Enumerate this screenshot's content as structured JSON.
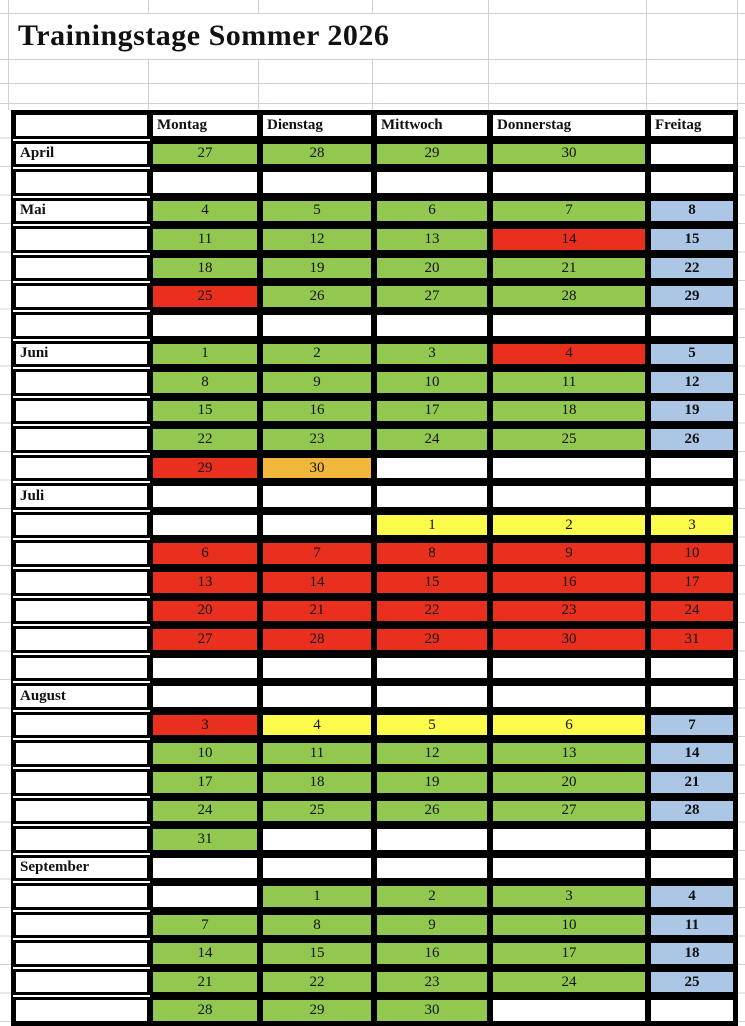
{
  "title": "Trainingstage Sommer 2026",
  "columns": [
    "Montag",
    "Dienstag",
    "Mittwoch",
    "Donnerstag",
    "Freitag"
  ],
  "colors": {
    "g": "#92c850",
    "r": "#e9301f",
    "b": "#acc7e6",
    "y": "#fbfb4b",
    "o": "#f0b73a",
    "w": "#ffffff"
  },
  "rows": [
    {
      "label": "April",
      "cells": [
        {
          "v": "27",
          "c": "g"
        },
        {
          "v": "28",
          "c": "g"
        },
        {
          "v": "29",
          "c": "g"
        },
        {
          "v": "30",
          "c": "g"
        },
        {
          "v": "",
          "c": "w"
        }
      ]
    },
    {
      "label": "",
      "cells": [
        {
          "v": "",
          "c": "w"
        },
        {
          "v": "",
          "c": "w"
        },
        {
          "v": "",
          "c": "w"
        },
        {
          "v": "",
          "c": "w"
        },
        {
          "v": "",
          "c": "w"
        }
      ]
    },
    {
      "label": "Mai",
      "cells": [
        {
          "v": "4",
          "c": "g"
        },
        {
          "v": "5",
          "c": "g"
        },
        {
          "v": "6",
          "c": "g"
        },
        {
          "v": "7",
          "c": "g"
        },
        {
          "v": "8",
          "c": "b"
        }
      ]
    },
    {
      "label": "",
      "cells": [
        {
          "v": "11",
          "c": "g"
        },
        {
          "v": "12",
          "c": "g"
        },
        {
          "v": "13",
          "c": "g"
        },
        {
          "v": "14",
          "c": "r"
        },
        {
          "v": "15",
          "c": "b"
        }
      ]
    },
    {
      "label": "",
      "cells": [
        {
          "v": "18",
          "c": "g"
        },
        {
          "v": "19",
          "c": "g"
        },
        {
          "v": "20",
          "c": "g"
        },
        {
          "v": "21",
          "c": "g"
        },
        {
          "v": "22",
          "c": "b"
        }
      ]
    },
    {
      "label": "",
      "cells": [
        {
          "v": "25",
          "c": "r"
        },
        {
          "v": "26",
          "c": "g"
        },
        {
          "v": "27",
          "c": "g"
        },
        {
          "v": "28",
          "c": "g"
        },
        {
          "v": "29",
          "c": "b"
        }
      ]
    },
    {
      "label": "",
      "cells": [
        {
          "v": "",
          "c": "w"
        },
        {
          "v": "",
          "c": "w"
        },
        {
          "v": "",
          "c": "w"
        },
        {
          "v": "",
          "c": "w"
        },
        {
          "v": "",
          "c": "w"
        }
      ]
    },
    {
      "label": "Juni",
      "cells": [
        {
          "v": "1",
          "c": "g"
        },
        {
          "v": "2",
          "c": "g"
        },
        {
          "v": "3",
          "c": "g"
        },
        {
          "v": "4",
          "c": "r"
        },
        {
          "v": "5",
          "c": "b"
        }
      ]
    },
    {
      "label": "",
      "cells": [
        {
          "v": "8",
          "c": "g"
        },
        {
          "v": "9",
          "c": "g"
        },
        {
          "v": "10",
          "c": "g"
        },
        {
          "v": "11",
          "c": "g"
        },
        {
          "v": "12",
          "c": "b"
        }
      ]
    },
    {
      "label": "",
      "cells": [
        {
          "v": "15",
          "c": "g"
        },
        {
          "v": "16",
          "c": "g"
        },
        {
          "v": "17",
          "c": "g"
        },
        {
          "v": "18",
          "c": "g"
        },
        {
          "v": "19",
          "c": "b"
        }
      ]
    },
    {
      "label": "",
      "cells": [
        {
          "v": "22",
          "c": "g"
        },
        {
          "v": "23",
          "c": "g"
        },
        {
          "v": "24",
          "c": "g"
        },
        {
          "v": "25",
          "c": "g"
        },
        {
          "v": "26",
          "c": "b"
        }
      ]
    },
    {
      "label": "",
      "cells": [
        {
          "v": "29",
          "c": "r"
        },
        {
          "v": "30",
          "c": "o"
        },
        {
          "v": "",
          "c": "w"
        },
        {
          "v": "",
          "c": "w"
        },
        {
          "v": "",
          "c": "w"
        }
      ]
    },
    {
      "label": "Juli",
      "cells": [
        {
          "v": "",
          "c": "w"
        },
        {
          "v": "",
          "c": "w"
        },
        {
          "v": "",
          "c": "w"
        },
        {
          "v": "",
          "c": "w"
        },
        {
          "v": "",
          "c": "w"
        }
      ]
    },
    {
      "label": "",
      "cells": [
        {
          "v": "",
          "c": "w"
        },
        {
          "v": "",
          "c": "w"
        },
        {
          "v": "1",
          "c": "y"
        },
        {
          "v": "2",
          "c": "y"
        },
        {
          "v": "3",
          "c": "y"
        }
      ]
    },
    {
      "label": "",
      "cells": [
        {
          "v": "6",
          "c": "r"
        },
        {
          "v": "7",
          "c": "r"
        },
        {
          "v": "8",
          "c": "r"
        },
        {
          "v": "9",
          "c": "r"
        },
        {
          "v": "10",
          "c": "r"
        }
      ]
    },
    {
      "label": "",
      "cells": [
        {
          "v": "13",
          "c": "r"
        },
        {
          "v": "14",
          "c": "r"
        },
        {
          "v": "15",
          "c": "r"
        },
        {
          "v": "16",
          "c": "r"
        },
        {
          "v": "17",
          "c": "r"
        }
      ]
    },
    {
      "label": "",
      "cells": [
        {
          "v": "20",
          "c": "r"
        },
        {
          "v": "21",
          "c": "r"
        },
        {
          "v": "22",
          "c": "r"
        },
        {
          "v": "23",
          "c": "r"
        },
        {
          "v": "24",
          "c": "r"
        }
      ]
    },
    {
      "label": "",
      "cells": [
        {
          "v": "27",
          "c": "r"
        },
        {
          "v": "28",
          "c": "r"
        },
        {
          "v": "29",
          "c": "r"
        },
        {
          "v": "30",
          "c": "r"
        },
        {
          "v": "31",
          "c": "r"
        }
      ]
    },
    {
      "label": "",
      "cells": [
        {
          "v": "",
          "c": "w"
        },
        {
          "v": "",
          "c": "w"
        },
        {
          "v": "",
          "c": "w"
        },
        {
          "v": "",
          "c": "w"
        },
        {
          "v": "",
          "c": "w"
        }
      ]
    },
    {
      "label": "August",
      "cells": [
        {
          "v": "",
          "c": "w"
        },
        {
          "v": "",
          "c": "w"
        },
        {
          "v": "",
          "c": "w"
        },
        {
          "v": "",
          "c": "w"
        },
        {
          "v": "",
          "c": "w"
        }
      ]
    },
    {
      "label": "",
      "cells": [
        {
          "v": "3",
          "c": "r"
        },
        {
          "v": "4",
          "c": "y"
        },
        {
          "v": "5",
          "c": "y"
        },
        {
          "v": "6",
          "c": "y"
        },
        {
          "v": "7",
          "c": "b"
        }
      ]
    },
    {
      "label": "",
      "cells": [
        {
          "v": "10",
          "c": "g"
        },
        {
          "v": "11",
          "c": "g"
        },
        {
          "v": "12",
          "c": "g"
        },
        {
          "v": "13",
          "c": "g"
        },
        {
          "v": "14",
          "c": "b"
        }
      ]
    },
    {
      "label": "",
      "cells": [
        {
          "v": "17",
          "c": "g"
        },
        {
          "v": "18",
          "c": "g"
        },
        {
          "v": "19",
          "c": "g"
        },
        {
          "v": "20",
          "c": "g"
        },
        {
          "v": "21",
          "c": "b"
        }
      ]
    },
    {
      "label": "",
      "cells": [
        {
          "v": "24",
          "c": "g"
        },
        {
          "v": "25",
          "c": "g"
        },
        {
          "v": "26",
          "c": "g"
        },
        {
          "v": "27",
          "c": "g"
        },
        {
          "v": "28",
          "c": "b"
        }
      ]
    },
    {
      "label": "",
      "cells": [
        {
          "v": "31",
          "c": "g"
        },
        {
          "v": "",
          "c": "w"
        },
        {
          "v": "",
          "c": "w"
        },
        {
          "v": "",
          "c": "w"
        },
        {
          "v": "",
          "c": "w"
        }
      ]
    },
    {
      "label": "September",
      "cells": [
        {
          "v": "",
          "c": "w"
        },
        {
          "v": "",
          "c": "w"
        },
        {
          "v": "",
          "c": "w"
        },
        {
          "v": "",
          "c": "w"
        },
        {
          "v": "",
          "c": "w"
        }
      ]
    },
    {
      "label": "",
      "cells": [
        {
          "v": "",
          "c": "w"
        },
        {
          "v": "1",
          "c": "g"
        },
        {
          "v": "2",
          "c": "g"
        },
        {
          "v": "3",
          "c": "g"
        },
        {
          "v": "4",
          "c": "b"
        }
      ]
    },
    {
      "label": "",
      "cells": [
        {
          "v": "7",
          "c": "g"
        },
        {
          "v": "8",
          "c": "g"
        },
        {
          "v": "9",
          "c": "g"
        },
        {
          "v": "10",
          "c": "g"
        },
        {
          "v": "11",
          "c": "b"
        }
      ]
    },
    {
      "label": "",
      "cells": [
        {
          "v": "14",
          "c": "g"
        },
        {
          "v": "15",
          "c": "g"
        },
        {
          "v": "16",
          "c": "g"
        },
        {
          "v": "17",
          "c": "g"
        },
        {
          "v": "18",
          "c": "b"
        }
      ]
    },
    {
      "label": "",
      "cells": [
        {
          "v": "21",
          "c": "g"
        },
        {
          "v": "22",
          "c": "g"
        },
        {
          "v": "23",
          "c": "g"
        },
        {
          "v": "24",
          "c": "g"
        },
        {
          "v": "25",
          "c": "b"
        }
      ]
    },
    {
      "label": "",
      "cells": [
        {
          "v": "28",
          "c": "g"
        },
        {
          "v": "29",
          "c": "g"
        },
        {
          "v": "30",
          "c": "g"
        },
        {
          "v": "",
          "c": "w"
        },
        {
          "v": "",
          "c": "w"
        }
      ]
    }
  ]
}
